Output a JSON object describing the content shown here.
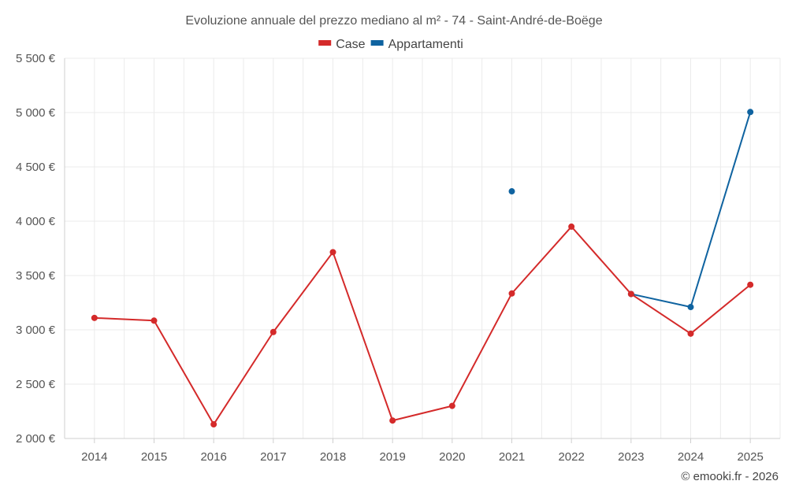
{
  "chart_data": {
    "type": "line",
    "title": "Evoluzione annuale del prezzo mediano al m² - 74 - Saint-André-de-Boëge",
    "categories": [
      "2014",
      "2015",
      "2016",
      "2017",
      "2018",
      "2019",
      "2020",
      "2021",
      "2022",
      "2023",
      "2024",
      "2025"
    ],
    "ylim": [
      2000,
      5500
    ],
    "yticks": [
      2000,
      2500,
      3000,
      3500,
      4000,
      4500,
      5000,
      5500
    ],
    "ytick_labels": [
      "2 000 €",
      "2 500 €",
      "3 000 €",
      "3 500 €",
      "4 000 €",
      "4 500 €",
      "5 000 €",
      "5 500 €"
    ],
    "grid": true,
    "legend_position": "top-center",
    "series": [
      {
        "name": "Case",
        "color": "#d42a2a",
        "values": [
          3110,
          3085,
          2130,
          2980,
          3715,
          2165,
          2300,
          3335,
          3950,
          3330,
          2965,
          3415
        ]
      },
      {
        "name": "Appartamenti",
        "color": "#0f63a0",
        "values": [
          null,
          null,
          null,
          null,
          null,
          null,
          null,
          4275,
          null,
          3330,
          3210,
          5005
        ]
      }
    ],
    "credit": "© emooki.fr - 2026"
  }
}
